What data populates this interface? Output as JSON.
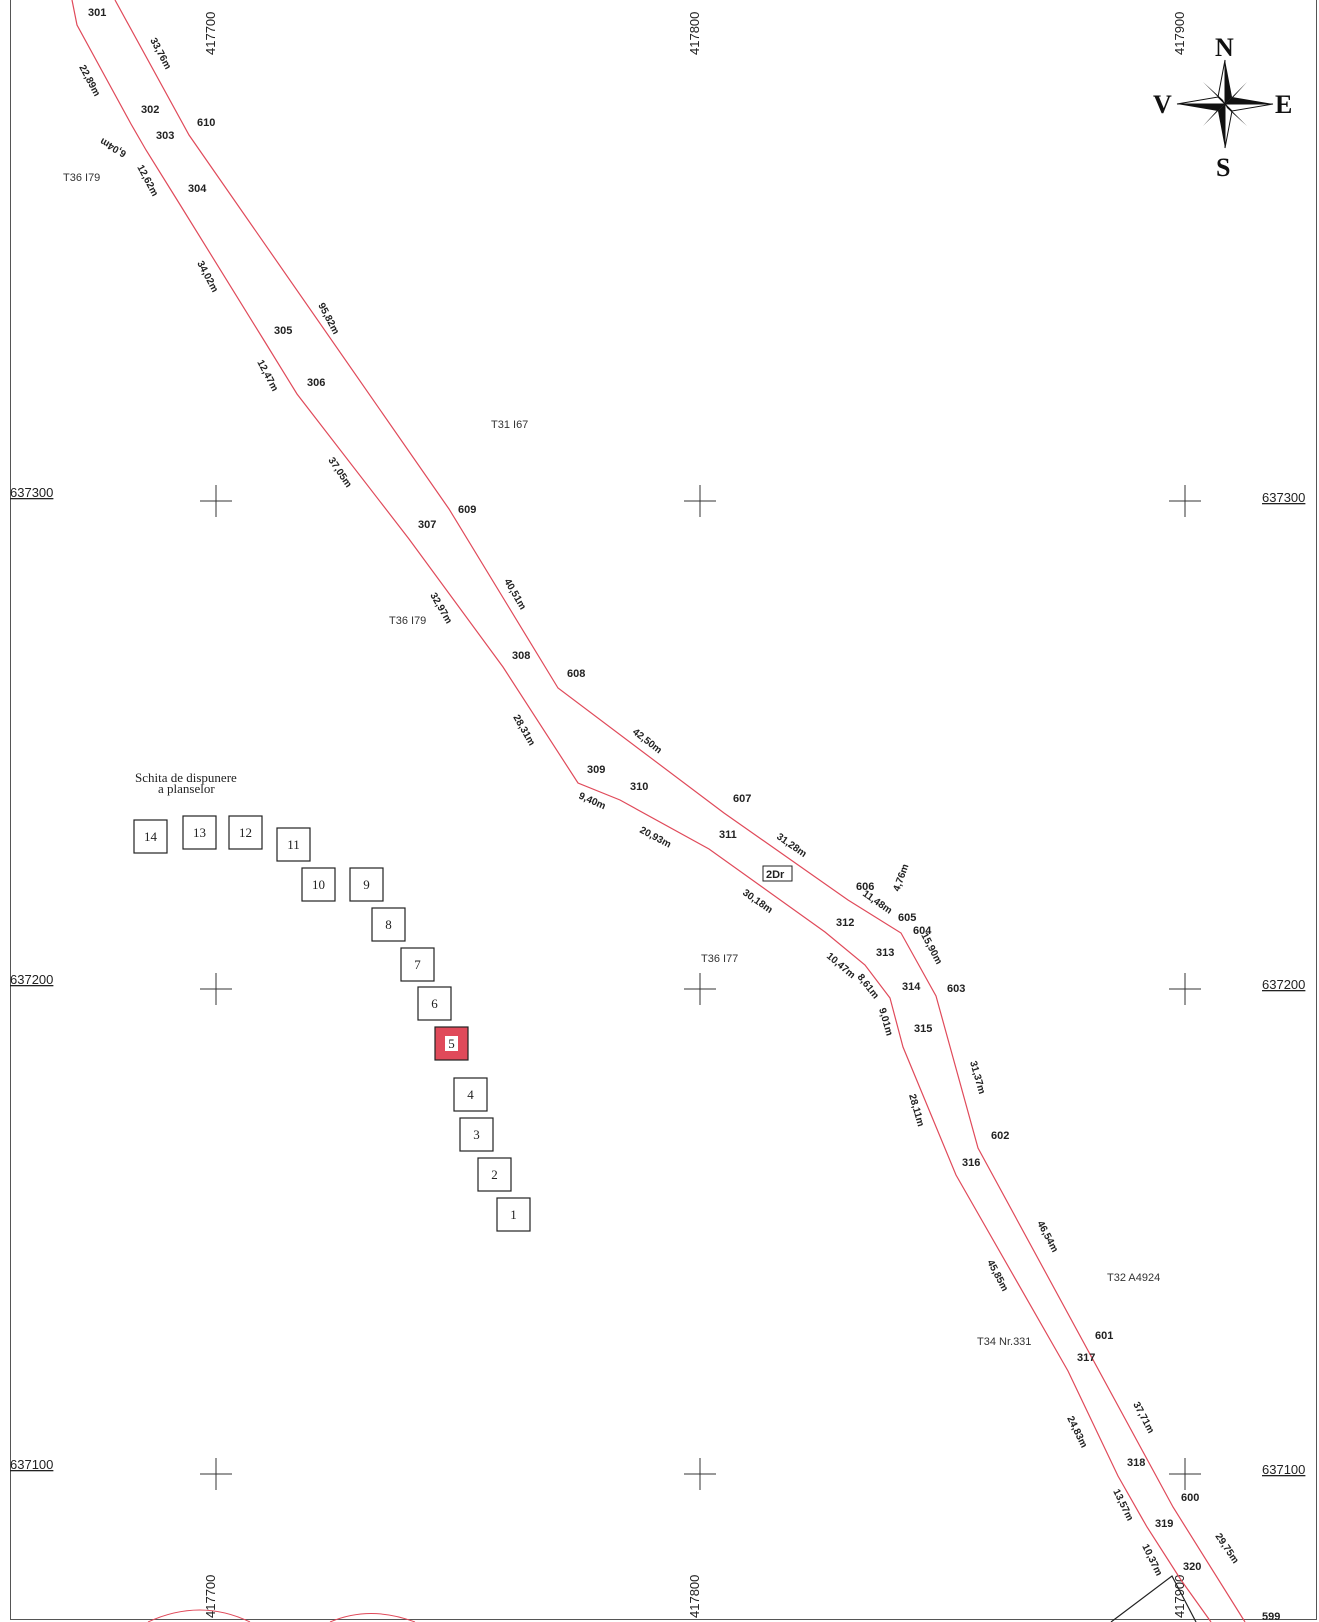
{
  "grid": {
    "x_labels": [
      "417700",
      "417800",
      "417900"
    ],
    "y_labels": [
      "637300",
      "637200",
      "637100"
    ]
  },
  "compass": {
    "n": "N",
    "s": "S",
    "e": "E",
    "w": "V"
  },
  "parcels": [
    {
      "id": "p1",
      "text": "T36 I79"
    },
    {
      "id": "p2",
      "text": "T31 I67"
    },
    {
      "id": "p3",
      "text": "T36 I79"
    },
    {
      "id": "p4",
      "text": "T36 I77"
    },
    {
      "id": "p5",
      "text": "T32 A4924"
    },
    {
      "id": "p6",
      "text": "T34 Nr.331"
    }
  ],
  "points_west": [
    "301",
    "302",
    "303",
    "304",
    "305",
    "306",
    "307",
    "308",
    "309",
    "310",
    "311",
    "312",
    "313",
    "314",
    "315",
    "316",
    "317",
    "318",
    "319",
    "320"
  ],
  "points_east": [
    "610",
    "609",
    "608",
    "607",
    "606",
    "605",
    "604",
    "603",
    "602",
    "601",
    "600",
    "599"
  ],
  "distances": [
    "33,76m",
    "22,89m",
    "6,04m",
    "12,62m",
    "34,02m",
    "95,82m",
    "12,47m",
    "37,05m",
    "40,51m",
    "32,97m",
    "28,31m",
    "42,50m",
    "9,40m",
    "20,93m",
    "31,28m",
    "30,18m",
    "11,48m",
    "4,76m",
    "15,90m",
    "10,47m",
    "8,61m",
    "9,01m",
    "31,37m",
    "28,11m",
    "46,54m",
    "45,85m",
    "37,71m",
    "24,83m",
    "13,57m",
    "29,75m",
    "10,37m"
  ],
  "road_label": "2Dr",
  "sketch": {
    "title_line1": "Schita de dispunere",
    "title_line2": "a planselor",
    "sheets": [
      "1",
      "2",
      "3",
      "4",
      "5",
      "6",
      "7",
      "8",
      "9",
      "10",
      "11",
      "12",
      "13",
      "14"
    ],
    "active_sheet": "5"
  },
  "colors": {
    "line": "#e04a5a",
    "active_sheet": "#e04a5a"
  }
}
